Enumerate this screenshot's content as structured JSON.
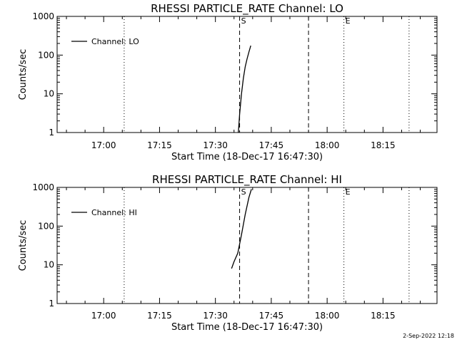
{
  "footer": {
    "timestamp": "2-Sep-2022 12:18"
  },
  "chart_data": [
    {
      "type": "line",
      "title": "RHESSI PARTICLE_RATE Channel: LO",
      "xlabel": "Start Time (18-Dec-17 16:47:30)",
      "ylabel": "Counts/sec",
      "y_scale": "log",
      "ylim": [
        1,
        1000
      ],
      "xlim": [
        "16:47:30",
        "18:29:30"
      ],
      "x_ticks": [
        "17:00",
        "17:15",
        "17:30",
        "17:45",
        "18:00",
        "18:15"
      ],
      "y_ticks": [
        "1",
        "10",
        "100",
        "1000"
      ],
      "legend": "top-left",
      "series": [
        {
          "name": "Channel: LO",
          "x": [
            "17:36:10",
            "17:36:30",
            "17:37:00",
            "17:37:30",
            "17:38:00",
            "17:38:30",
            "17:39:00",
            "17:39:30"
          ],
          "y": [
            1,
            3,
            10,
            25,
            50,
            80,
            120,
            175
          ]
        }
      ],
      "vlines": [
        {
          "x": "17:05:30",
          "style": "dotted",
          "label": ""
        },
        {
          "x": "17:36:30",
          "style": "dashed",
          "label": "S"
        },
        {
          "x": "17:55:00",
          "style": "dashed",
          "label": ""
        },
        {
          "x": "18:04:30",
          "style": "dotted",
          "label": "E"
        },
        {
          "x": "18:22:00",
          "style": "dotted",
          "label": ""
        }
      ]
    },
    {
      "type": "line",
      "title": "RHESSI PARTICLE_RATE Channel: HI",
      "xlabel": "Start Time (18-Dec-17 16:47:30)",
      "ylabel": "Counts/sec",
      "y_scale": "log",
      "ylim": [
        1,
        1000
      ],
      "xlim": [
        "16:47:30",
        "18:29:30"
      ],
      "x_ticks": [
        "17:00",
        "17:15",
        "17:30",
        "17:45",
        "18:00",
        "18:15"
      ],
      "y_ticks": [
        "1",
        "10",
        "100",
        "1000"
      ],
      "legend": "top-left",
      "series": [
        {
          "name": "Channel: HI",
          "x": [
            "17:34:20",
            "17:35:00",
            "17:36:00",
            "17:37:00",
            "17:38:00",
            "17:39:00",
            "17:39:40"
          ],
          "y": [
            8,
            12,
            20,
            60,
            200,
            550,
            900
          ]
        }
      ],
      "vlines": [
        {
          "x": "17:05:30",
          "style": "dotted",
          "label": ""
        },
        {
          "x": "17:36:30",
          "style": "dashed",
          "label": "S"
        },
        {
          "x": "17:55:00",
          "style": "dashed",
          "label": ""
        },
        {
          "x": "18:04:30",
          "style": "dotted",
          "label": "E"
        },
        {
          "x": "18:22:00",
          "style": "dotted",
          "label": ""
        }
      ]
    }
  ]
}
